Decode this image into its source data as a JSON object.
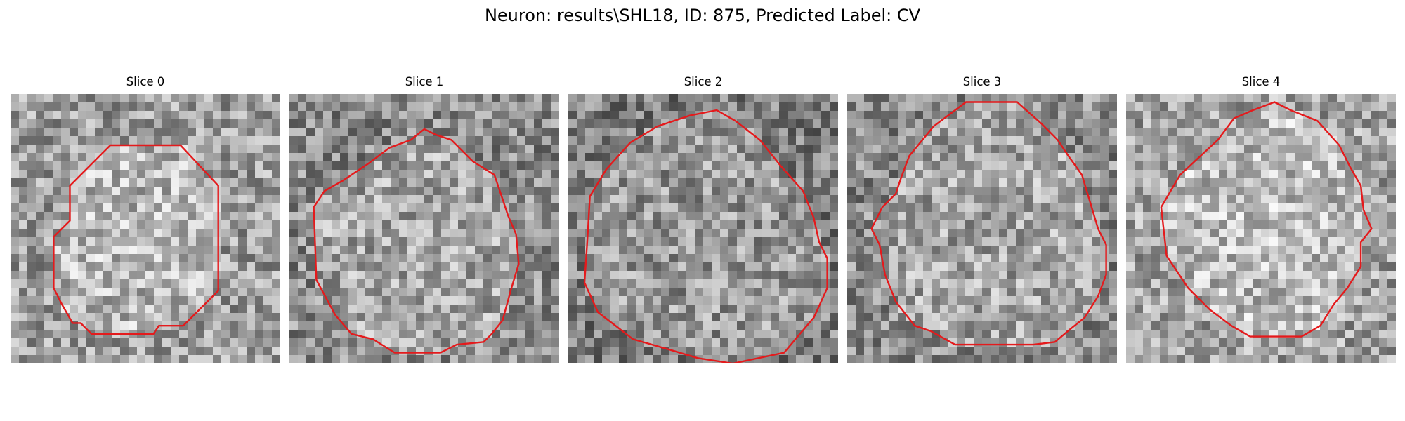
{
  "figure": {
    "title": "Neuron: results\\SHL18, ID: 875, Predicted Label: CV"
  },
  "contour_color": "#e41a1c",
  "panels": [
    {
      "title": "Slice 0",
      "brightness": 0.62,
      "contour": [
        [
          0.37,
          0.19
        ],
        [
          0.63,
          0.19
        ],
        [
          0.77,
          0.34
        ],
        [
          0.77,
          0.73
        ],
        [
          0.64,
          0.86
        ],
        [
          0.55,
          0.86
        ],
        [
          0.53,
          0.89
        ],
        [
          0.3,
          0.89
        ],
        [
          0.26,
          0.85
        ],
        [
          0.23,
          0.85
        ],
        [
          0.19,
          0.78
        ],
        [
          0.16,
          0.72
        ],
        [
          0.16,
          0.53
        ],
        [
          0.22,
          0.47
        ],
        [
          0.22,
          0.34
        ]
      ]
    },
    {
      "title": "Slice 1",
      "brightness": 0.55,
      "contour": [
        [
          0.5,
          0.13
        ],
        [
          0.54,
          0.15
        ],
        [
          0.6,
          0.17
        ],
        [
          0.68,
          0.25
        ],
        [
          0.76,
          0.3
        ],
        [
          0.79,
          0.39
        ],
        [
          0.81,
          0.45
        ],
        [
          0.84,
          0.52
        ],
        [
          0.85,
          0.63
        ],
        [
          0.82,
          0.73
        ],
        [
          0.79,
          0.84
        ],
        [
          0.75,
          0.89
        ],
        [
          0.72,
          0.92
        ],
        [
          0.62,
          0.93
        ],
        [
          0.56,
          0.96
        ],
        [
          0.39,
          0.96
        ],
        [
          0.31,
          0.91
        ],
        [
          0.23,
          0.89
        ],
        [
          0.17,
          0.82
        ],
        [
          0.1,
          0.69
        ],
        [
          0.09,
          0.42
        ],
        [
          0.13,
          0.36
        ],
        [
          0.2,
          0.32
        ],
        [
          0.29,
          0.26
        ],
        [
          0.37,
          0.2
        ],
        [
          0.45,
          0.17
        ]
      ]
    },
    {
      "title": "Slice 2",
      "brightness": 0.5,
      "contour": [
        [
          0.45,
          0.08
        ],
        [
          0.55,
          0.06
        ],
        [
          0.62,
          0.1
        ],
        [
          0.71,
          0.17
        ],
        [
          0.79,
          0.27
        ],
        [
          0.87,
          0.36
        ],
        [
          0.91,
          0.46
        ],
        [
          0.93,
          0.55
        ],
        [
          0.96,
          0.61
        ],
        [
          0.96,
          0.72
        ],
        [
          0.91,
          0.83
        ],
        [
          0.85,
          0.9
        ],
        [
          0.8,
          0.96
        ],
        [
          0.61,
          1.0
        ],
        [
          0.48,
          0.98
        ],
        [
          0.38,
          0.95
        ],
        [
          0.24,
          0.91
        ],
        [
          0.11,
          0.81
        ],
        [
          0.06,
          0.7
        ],
        [
          0.07,
          0.55
        ],
        [
          0.08,
          0.38
        ],
        [
          0.14,
          0.28
        ],
        [
          0.23,
          0.18
        ],
        [
          0.33,
          0.12
        ]
      ]
    },
    {
      "title": "Slice 3",
      "brightness": 0.55,
      "contour": [
        [
          0.44,
          0.03
        ],
        [
          0.63,
          0.03
        ],
        [
          0.72,
          0.11
        ],
        [
          0.78,
          0.17
        ],
        [
          0.82,
          0.23
        ],
        [
          0.87,
          0.3
        ],
        [
          0.9,
          0.4
        ],
        [
          0.93,
          0.5
        ],
        [
          0.96,
          0.56
        ],
        [
          0.96,
          0.67
        ],
        [
          0.93,
          0.75
        ],
        [
          0.88,
          0.83
        ],
        [
          0.83,
          0.87
        ],
        [
          0.77,
          0.92
        ],
        [
          0.69,
          0.93
        ],
        [
          0.4,
          0.93
        ],
        [
          0.31,
          0.88
        ],
        [
          0.25,
          0.86
        ],
        [
          0.18,
          0.77
        ],
        [
          0.14,
          0.67
        ],
        [
          0.12,
          0.56
        ],
        [
          0.09,
          0.5
        ],
        [
          0.13,
          0.42
        ],
        [
          0.18,
          0.37
        ],
        [
          0.2,
          0.31
        ],
        [
          0.23,
          0.23
        ],
        [
          0.32,
          0.12
        ]
      ]
    },
    {
      "title": "Slice 4",
      "brightness": 0.64,
      "contour": [
        [
          0.47,
          0.06
        ],
        [
          0.55,
          0.03
        ],
        [
          0.61,
          0.06
        ],
        [
          0.71,
          0.1
        ],
        [
          0.79,
          0.19
        ],
        [
          0.83,
          0.27
        ],
        [
          0.87,
          0.34
        ],
        [
          0.88,
          0.43
        ],
        [
          0.91,
          0.5
        ],
        [
          0.87,
          0.55
        ],
        [
          0.87,
          0.64
        ],
        [
          0.82,
          0.72
        ],
        [
          0.77,
          0.78
        ],
        [
          0.72,
          0.86
        ],
        [
          0.65,
          0.9
        ],
        [
          0.55,
          0.9
        ],
        [
          0.46,
          0.9
        ],
        [
          0.39,
          0.86
        ],
        [
          0.31,
          0.8
        ],
        [
          0.23,
          0.72
        ],
        [
          0.15,
          0.6
        ],
        [
          0.13,
          0.42
        ],
        [
          0.2,
          0.3
        ],
        [
          0.34,
          0.17
        ],
        [
          0.4,
          0.09
        ]
      ]
    }
  ]
}
